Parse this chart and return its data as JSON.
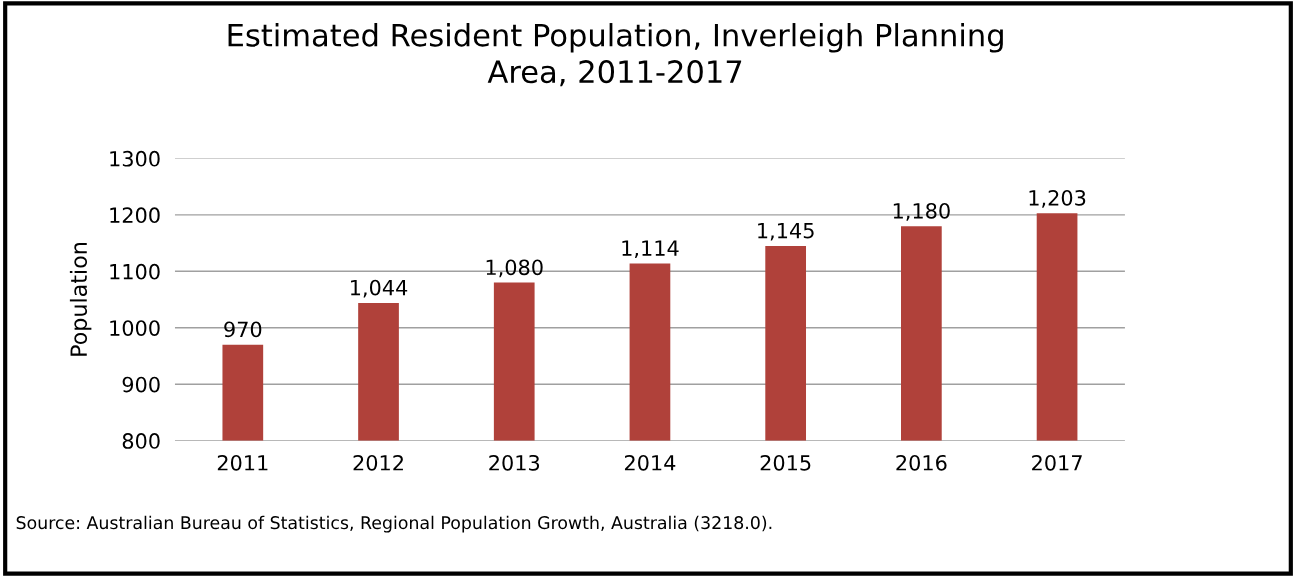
{
  "chart_data": {
    "type": "bar",
    "title": "Estimated Resident Population, Inverleigh Planning\nArea, 2011-2017",
    "ylabel": "Population",
    "categories": [
      "2011",
      "2012",
      "2013",
      "2014",
      "2015",
      "2016",
      "2017"
    ],
    "values": [
      970,
      1044,
      1080,
      1114,
      1145,
      1180,
      1203
    ],
    "value_labels": [
      "970",
      "1,044",
      "1,080",
      "1,114",
      "1,145",
      "1,180",
      "1,203"
    ],
    "color": "#b0413a",
    "ylim": [
      800,
      1300
    ],
    "yticks": [
      800,
      900,
      1000,
      1100,
      1200,
      1300
    ],
    "grid": "y",
    "annotations": [
      "Source: Australian Bureau of Statistics, Regional Population Growth, Australia (3218.0)."
    ]
  }
}
